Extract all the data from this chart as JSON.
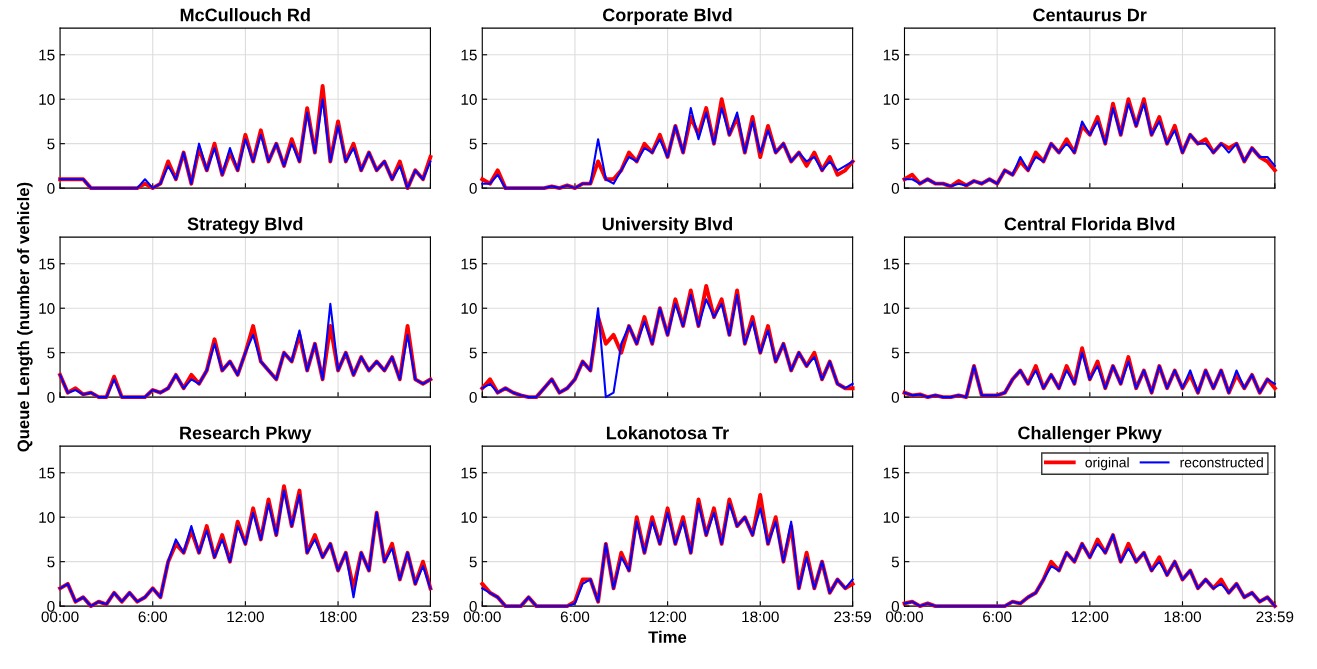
{
  "chart_data": [
    {
      "type": "line",
      "title": "McCullouch Rd",
      "tick_labels": "y",
      "grid": true,
      "xlim": [
        0,
        23.98
      ],
      "xticks": [
        0,
        6,
        12,
        18,
        23.98
      ],
      "ylim": [
        0,
        18
      ],
      "yticks": [
        0,
        5,
        10,
        15
      ],
      "x": [
        0,
        0.5,
        1,
        1.5,
        2,
        2.5,
        3,
        3.5,
        4,
        4.5,
        5,
        5.5,
        6,
        6.5,
        7,
        7.5,
        8,
        8.5,
        9,
        9.5,
        10,
        10.5,
        11,
        11.5,
        12,
        12.5,
        13,
        13.5,
        14,
        14.5,
        15,
        15.5,
        16,
        16.5,
        17,
        17.5,
        18,
        18.5,
        19,
        19.5,
        20,
        20.5,
        21,
        21.5,
        22,
        22.5,
        23,
        23.5,
        23.98
      ],
      "series": [
        {
          "color": "#ff0000",
          "values": [
            1,
            1,
            1,
            1,
            0,
            0,
            0,
            0,
            0,
            0,
            0,
            0.5,
            0,
            0.5,
            3,
            1,
            4,
            0.5,
            4.5,
            2,
            5,
            1.5,
            4,
            2,
            6,
            3,
            6.5,
            3,
            5,
            2.5,
            5.5,
            3,
            9,
            4,
            11.5,
            3,
            7.5,
            3,
            5,
            2,
            4,
            2,
            3,
            1,
            3,
            0,
            2,
            1,
            3.5
          ]
        },
        {
          "color": "#0000ff",
          "values": [
            1,
            1,
            1,
            1,
            0,
            0,
            0,
            0,
            0,
            0,
            0,
            1,
            0,
            0.5,
            2.5,
            1,
            4,
            0.5,
            5,
            2,
            4.5,
            1.5,
            4.5,
            2,
            5.5,
            3,
            6,
            3,
            5,
            2.5,
            5,
            3,
            8.5,
            4,
            10,
            3,
            7,
            3,
            4.5,
            2,
            4,
            2,
            3,
            1,
            2.5,
            0,
            2,
            1,
            3
          ]
        }
      ]
    },
    {
      "type": "line",
      "title": "Corporate Blvd",
      "tick_labels": "y",
      "grid": true,
      "xlim": [
        0,
        23.98
      ],
      "xticks": [
        0,
        6,
        12,
        18,
        23.98
      ],
      "ylim": [
        0,
        18
      ],
      "yticks": [
        0,
        5,
        10,
        15
      ],
      "x": [
        0,
        0.5,
        1,
        1.5,
        2,
        2.5,
        3,
        3.5,
        4,
        4.5,
        5,
        5.5,
        6,
        6.5,
        7,
        7.5,
        8,
        8.5,
        9,
        9.5,
        10,
        10.5,
        11,
        11.5,
        12,
        12.5,
        13,
        13.5,
        14,
        14.5,
        15,
        15.5,
        16,
        16.5,
        17,
        17.5,
        18,
        18.5,
        19,
        19.5,
        20,
        20.5,
        21,
        21.5,
        22,
        22.5,
        23,
        23.5,
        23.98
      ],
      "series": [
        {
          "color": "#ff0000",
          "values": [
            1,
            0.5,
            2,
            0,
            0,
            0,
            0,
            0,
            0,
            0.2,
            0,
            0.3,
            0,
            0.5,
            0.5,
            3,
            1,
            1,
            2,
            4,
            3,
            5,
            4,
            6,
            3.5,
            7,
            4,
            8,
            6,
            9,
            5,
            10,
            6,
            8,
            4,
            8,
            3.5,
            7,
            4,
            5,
            3,
            4,
            2.5,
            4,
            2,
            3.5,
            1.5,
            2,
            3
          ]
        },
        {
          "color": "#0000ff",
          "values": [
            0.5,
            0.5,
            1.5,
            0,
            0,
            0,
            0,
            0,
            0,
            0.2,
            0,
            0.3,
            0,
            0.5,
            0.5,
            5.5,
            1,
            0.5,
            2,
            3.5,
            3,
            4.5,
            4,
            5.5,
            3.5,
            7,
            4,
            9,
            5.5,
            8.5,
            5,
            9,
            6,
            8.5,
            4,
            7.5,
            4,
            6.5,
            4,
            5,
            3,
            4,
            3,
            3.5,
            2,
            3,
            2,
            2.5,
            3
          ]
        }
      ]
    },
    {
      "type": "line",
      "title": "Centaurus Dr",
      "tick_labels": "y",
      "grid": true,
      "xlim": [
        0,
        23.98
      ],
      "xticks": [
        0,
        6,
        12,
        18,
        23.98
      ],
      "ylim": [
        0,
        18
      ],
      "yticks": [
        0,
        5,
        10,
        15
      ],
      "x": [
        0,
        0.5,
        1,
        1.5,
        2,
        2.5,
        3,
        3.5,
        4,
        4.5,
        5,
        5.5,
        6,
        6.5,
        7,
        7.5,
        8,
        8.5,
        9,
        9.5,
        10,
        10.5,
        11,
        11.5,
        12,
        12.5,
        13,
        13.5,
        14,
        14.5,
        15,
        15.5,
        16,
        16.5,
        17,
        17.5,
        18,
        18.5,
        19,
        19.5,
        20,
        20.5,
        21,
        21.5,
        22,
        22.5,
        23,
        23.5,
        23.98
      ],
      "series": [
        {
          "color": "#ff0000",
          "values": [
            1,
            1.5,
            0.5,
            1,
            0.5,
            0.5,
            0.2,
            0.8,
            0.3,
            0.8,
            0.5,
            1,
            0.5,
            2,
            1.5,
            3,
            2,
            4,
            3,
            5,
            4,
            5.5,
            4,
            7,
            6,
            8,
            5,
            9.5,
            6,
            10,
            7,
            10,
            6,
            8,
            5,
            7,
            4,
            6,
            5,
            5.5,
            4,
            5,
            4.5,
            5,
            3,
            4.5,
            3.5,
            3,
            2
          ]
        },
        {
          "color": "#0000ff",
          "values": [
            1,
            1,
            0.5,
            1,
            0.5,
            0.5,
            0.2,
            0.5,
            0.3,
            0.8,
            0.5,
            1,
            0.5,
            2,
            1.5,
            3.5,
            2,
            3.5,
            3,
            5,
            4,
            5,
            4,
            7.5,
            6,
            7.5,
            5,
            9,
            6,
            9.5,
            7,
            9.5,
            6,
            7.5,
            5,
            6.5,
            4,
            6,
            5,
            5,
            4,
            5,
            4,
            5,
            3,
            4.5,
            3.5,
            3.5,
            2.5
          ]
        }
      ]
    },
    {
      "type": "line",
      "title": "Strategy Blvd",
      "ylabel": "Queue Length (number of vehicle)",
      "tick_labels": "y",
      "grid": true,
      "xlim": [
        0,
        23.98
      ],
      "xticks": [
        0,
        6,
        12,
        18,
        23.98
      ],
      "ylim": [
        0,
        18
      ],
      "yticks": [
        0,
        5,
        10,
        15
      ],
      "x": [
        0,
        0.5,
        1,
        1.5,
        2,
        2.5,
        3,
        3.5,
        4,
        4.5,
        5,
        5.5,
        6,
        6.5,
        7,
        7.5,
        8,
        8.5,
        9,
        9.5,
        10,
        10.5,
        11,
        11.5,
        12,
        12.5,
        13,
        13.5,
        14,
        14.5,
        15,
        15.5,
        16,
        16.5,
        17,
        17.5,
        18,
        18.5,
        19,
        19.5,
        20,
        20.5,
        21,
        21.5,
        22,
        22.5,
        23,
        23.5,
        23.98
      ],
      "series": [
        {
          "color": "#ff0000",
          "values": [
            2.5,
            0.5,
            1,
            0.3,
            0.5,
            0,
            0,
            2.3,
            0,
            0,
            0,
            0,
            0.8,
            0.5,
            1,
            2.5,
            1,
            2.5,
            1.5,
            3,
            6.5,
            3,
            4,
            2.5,
            5,
            8,
            4,
            3,
            2,
            5,
            4,
            7,
            3,
            6,
            2,
            8,
            3,
            5,
            2.5,
            4.5,
            3,
            4,
            3,
            4.5,
            2,
            8,
            2,
            1.5,
            2
          ]
        },
        {
          "color": "#0000ff",
          "values": [
            2.5,
            0.5,
            0.8,
            0.3,
            0.5,
            0,
            0,
            2,
            0,
            0,
            0,
            0,
            0.8,
            0.5,
            1,
            2.5,
            1,
            2,
            1.5,
            3,
            6,
            3,
            4,
            2.5,
            5,
            7,
            4,
            3,
            2,
            5,
            4,
            7.5,
            3,
            6,
            2,
            10.5,
            3,
            5,
            2.5,
            4.5,
            3,
            4,
            3,
            4.5,
            2,
            7,
            2,
            1.5,
            2
          ]
        }
      ]
    },
    {
      "type": "line",
      "title": "University Blvd",
      "tick_labels": "y",
      "grid": true,
      "xlim": [
        0,
        23.98
      ],
      "xticks": [
        0,
        6,
        12,
        18,
        23.98
      ],
      "ylim": [
        0,
        18
      ],
      "yticks": [
        0,
        5,
        10,
        15
      ],
      "x": [
        0,
        0.5,
        1,
        1.5,
        2,
        2.5,
        3,
        3.5,
        4,
        4.5,
        5,
        5.5,
        6,
        6.5,
        7,
        7.5,
        8,
        8.5,
        9,
        9.5,
        10,
        10.5,
        11,
        11.5,
        12,
        12.5,
        13,
        13.5,
        14,
        14.5,
        15,
        15.5,
        16,
        16.5,
        17,
        17.5,
        18,
        18.5,
        19,
        19.5,
        20,
        20.5,
        21,
        21.5,
        22,
        22.5,
        23,
        23.5,
        23.98
      ],
      "series": [
        {
          "color": "#ff0000",
          "values": [
            1,
            2,
            0.5,
            1,
            0.5,
            0.2,
            0,
            0,
            1,
            2,
            0.5,
            1,
            2,
            4,
            3,
            9,
            6,
            7,
            5,
            8,
            6,
            9,
            6,
            10,
            7,
            11,
            8,
            12,
            8,
            12.5,
            9,
            11,
            7,
            12,
            6,
            9,
            5,
            8,
            4,
            6,
            3,
            5,
            3.5,
            5,
            2,
            4,
            1.5,
            1,
            1
          ]
        },
        {
          "color": "#0000ff",
          "values": [
            1,
            1.5,
            0.5,
            1,
            0.5,
            0.2,
            0,
            0,
            1,
            2,
            0.5,
            1,
            2,
            4,
            3,
            10,
            0,
            0.5,
            6,
            8,
            6,
            8.5,
            6,
            10,
            7,
            10.5,
            8,
            11.5,
            8,
            11,
            9,
            10.5,
            7,
            11.5,
            6,
            8.5,
            5,
            7.5,
            4,
            6,
            3,
            5,
            3.5,
            4.5,
            2,
            4,
            1.5,
            1,
            1.5
          ]
        }
      ]
    },
    {
      "type": "line",
      "title": "Central Florida Blvd",
      "tick_labels": "y",
      "grid": true,
      "xlim": [
        0,
        23.98
      ],
      "xticks": [
        0,
        6,
        12,
        18,
        23.98
      ],
      "ylim": [
        0,
        18
      ],
      "yticks": [
        0,
        5,
        10,
        15
      ],
      "x": [
        0,
        0.5,
        1,
        1.5,
        2,
        2.5,
        3,
        3.5,
        4,
        4.5,
        5,
        5.5,
        6,
        6.5,
        7,
        7.5,
        8,
        8.5,
        9,
        9.5,
        10,
        10.5,
        11,
        11.5,
        12,
        12.5,
        13,
        13.5,
        14,
        14.5,
        15,
        15.5,
        16,
        16.5,
        17,
        17.5,
        18,
        18.5,
        19,
        19.5,
        20,
        20.5,
        21,
        21.5,
        22,
        22.5,
        23,
        23.5,
        23.98
      ],
      "series": [
        {
          "color": "#ff0000",
          "values": [
            0.5,
            0.2,
            0.3,
            0,
            0.2,
            0,
            0,
            0.2,
            0,
            3.5,
            0.2,
            0.2,
            0.2,
            0.5,
            2,
            3,
            1.5,
            3.5,
            1,
            2.5,
            1,
            3.5,
            1.5,
            5.5,
            2,
            4,
            1,
            3.5,
            1.5,
            4.5,
            1,
            3,
            0.5,
            3.5,
            1,
            3,
            1,
            2.5,
            0.5,
            3,
            1,
            3,
            0.5,
            2.5,
            1,
            2.5,
            0.5,
            2,
            1
          ]
        },
        {
          "color": "#0000ff",
          "values": [
            0.5,
            0.2,
            0.3,
            0,
            0.2,
            0,
            0,
            0.2,
            0,
            3.5,
            0.2,
            0.2,
            0.2,
            0.5,
            2,
            3,
            1.5,
            3,
            1,
            2.5,
            1,
            3,
            1.5,
            5,
            2,
            3.5,
            1,
            3.5,
            1.5,
            4,
            1,
            3,
            0.5,
            3.5,
            1,
            3,
            1,
            3,
            0.5,
            3,
            1,
            3,
            0.5,
            3,
            1,
            2.5,
            0.5,
            2,
            1.5
          ]
        }
      ]
    },
    {
      "type": "line",
      "title": "Research Pkwy",
      "grid": true,
      "xlim": [
        0,
        23.98
      ],
      "xticks": [
        {
          "value": 0,
          "label": "00:00"
        },
        {
          "value": 6,
          "label": "6:00"
        },
        {
          "value": 12,
          "label": "12:00"
        },
        {
          "value": 18,
          "label": "18:00"
        },
        {
          "value": 23.98,
          "label": "23:59"
        }
      ],
      "ylim": [
        0,
        18
      ],
      "yticks": [
        0,
        5,
        10,
        15
      ],
      "x": [
        0,
        0.5,
        1,
        1.5,
        2,
        2.5,
        3,
        3.5,
        4,
        4.5,
        5,
        5.5,
        6,
        6.5,
        7,
        7.5,
        8,
        8.5,
        9,
        9.5,
        10,
        10.5,
        11,
        11.5,
        12,
        12.5,
        13,
        13.5,
        14,
        14.5,
        15,
        15.5,
        16,
        16.5,
        17,
        17.5,
        18,
        18.5,
        19,
        19.5,
        20,
        20.5,
        21,
        21.5,
        22,
        22.5,
        23,
        23.5,
        23.98
      ],
      "series": [
        {
          "color": "#ff0000",
          "values": [
            2,
            2.5,
            0.5,
            1,
            0,
            0.5,
            0.2,
            1.5,
            0.5,
            1.5,
            0.5,
            1,
            2,
            1,
            5,
            7,
            6,
            8.5,
            6,
            9,
            5.5,
            8,
            5,
            9.5,
            7,
            11,
            7.5,
            12,
            8,
            13.5,
            9,
            13,
            6,
            8,
            5.5,
            7,
            4,
            6,
            2,
            6,
            4,
            10.5,
            5,
            7,
            3,
            6,
            2.5,
            5,
            2
          ]
        },
        {
          "color": "#0000ff",
          "values": [
            2,
            2.5,
            0.5,
            1,
            0,
            0.5,
            0.2,
            1.5,
            0.5,
            1.5,
            0.5,
            1,
            2,
            1,
            5,
            7.5,
            6,
            9,
            6,
            8.5,
            5.5,
            7.5,
            5,
            9,
            7,
            10.5,
            7.5,
            11.5,
            8,
            13,
            9,
            12.5,
            6,
            7.5,
            5.5,
            7,
            4,
            6,
            1,
            6,
            4,
            10.5,
            5,
            6.5,
            3,
            6,
            2.5,
            4.5,
            2
          ]
        }
      ]
    },
    {
      "type": "line",
      "title": "Lokanotosa Tr",
      "xlabel": "Time",
      "grid": true,
      "xlim": [
        0,
        23.98
      ],
      "xticks": [
        {
          "value": 0,
          "label": "00:00"
        },
        {
          "value": 6,
          "label": "6:00"
        },
        {
          "value": 12,
          "label": "12:00"
        },
        {
          "value": 18,
          "label": "18:00"
        },
        {
          "value": 23.98,
          "label": "23:59"
        }
      ],
      "ylim": [
        0,
        18
      ],
      "yticks": [
        0,
        5,
        10,
        15
      ],
      "x": [
        0,
        0.5,
        1,
        1.5,
        2,
        2.5,
        3,
        3.5,
        4,
        4.5,
        5,
        5.5,
        6,
        6.5,
        7,
        7.5,
        8,
        8.5,
        9,
        9.5,
        10,
        10.5,
        11,
        11.5,
        12,
        12.5,
        13,
        13.5,
        14,
        14.5,
        15,
        15.5,
        16,
        16.5,
        17,
        17.5,
        18,
        18.5,
        19,
        19.5,
        20,
        20.5,
        21,
        21.5,
        22,
        22.5,
        23,
        23.5,
        23.98
      ],
      "series": [
        {
          "color": "#ff0000",
          "values": [
            2.5,
            1.5,
            1,
            0,
            0,
            0,
            1,
            0,
            0,
            0,
            0,
            0,
            0.5,
            3,
            3,
            0.5,
            7,
            2,
            6,
            4,
            10,
            6,
            10,
            7,
            11,
            7,
            10,
            6,
            12,
            8,
            11,
            7,
            12,
            9,
            10,
            8,
            12.5,
            7,
            10,
            5,
            9,
            2,
            6,
            2,
            5,
            1.5,
            3,
            2,
            2.5
          ]
        },
        {
          "color": "#0000ff",
          "values": [
            2,
            1.5,
            1,
            0,
            0,
            0,
            1,
            0,
            0,
            0,
            0,
            0,
            0.3,
            2.5,
            3,
            0.5,
            7,
            2,
            5.5,
            4,
            9.5,
            6,
            9.5,
            7,
            10.5,
            7,
            9.5,
            6,
            11.5,
            8,
            10.5,
            7,
            11.5,
            9,
            10,
            8,
            11,
            7,
            9.5,
            5,
            9.5,
            2,
            5.5,
            2,
            5,
            1.5,
            3,
            2,
            3
          ]
        }
      ]
    },
    {
      "type": "line",
      "title": "Challenger Pkwy",
      "legend": "top right",
      "grid": true,
      "xlim": [
        0,
        23.98
      ],
      "xticks": [
        {
          "value": 0,
          "label": "00:00"
        },
        {
          "value": 6,
          "label": "6:00"
        },
        {
          "value": 12,
          "label": "12:00"
        },
        {
          "value": 18,
          "label": "18:00"
        },
        {
          "value": 23.98,
          "label": "23:59"
        }
      ],
      "ylim": [
        0,
        18
      ],
      "yticks": [
        0,
        5,
        10,
        15
      ],
      "x": [
        0,
        0.5,
        1,
        1.5,
        2,
        2.5,
        3,
        3.5,
        4,
        4.5,
        5,
        5.5,
        6,
        6.5,
        7,
        7.5,
        8,
        8.5,
        9,
        9.5,
        10,
        10.5,
        11,
        11.5,
        12,
        12.5,
        13,
        13.5,
        14,
        14.5,
        15,
        15.5,
        16,
        16.5,
        17,
        17.5,
        18,
        18.5,
        19,
        19.5,
        20,
        20.5,
        21,
        21.5,
        22,
        22.5,
        23,
        23.5,
        23.98
      ],
      "series": [
        {
          "name": "original",
          "color": "#ff0000",
          "values": [
            0.3,
            0.5,
            0,
            0.3,
            0,
            0,
            0,
            0,
            0,
            0,
            0,
            0,
            0,
            0,
            0.5,
            0.3,
            1,
            1.5,
            3,
            5,
            4,
            6,
            5,
            7,
            5.5,
            7.5,
            6,
            8,
            5,
            7,
            5,
            6,
            4,
            5.5,
            3.5,
            5,
            3,
            4,
            2,
            3,
            2,
            3,
            1.5,
            2.5,
            1,
            1.5,
            0.5,
            1,
            0
          ]
        },
        {
          "name": "reconstructed",
          "color": "#0000ff",
          "values": [
            0.3,
            0.5,
            0,
            0.3,
            0,
            0,
            0,
            0,
            0,
            0,
            0,
            0,
            0,
            0,
            0.5,
            0.3,
            1,
            1.5,
            3,
            4.5,
            4,
            6,
            5,
            7,
            5.5,
            7,
            6,
            8,
            5,
            6.5,
            5,
            6,
            4,
            5,
            3.5,
            5,
            3,
            4,
            2,
            3,
            2,
            2.5,
            1.5,
            2.5,
            1,
            1.5,
            0.5,
            1,
            0
          ]
        }
      ]
    }
  ]
}
